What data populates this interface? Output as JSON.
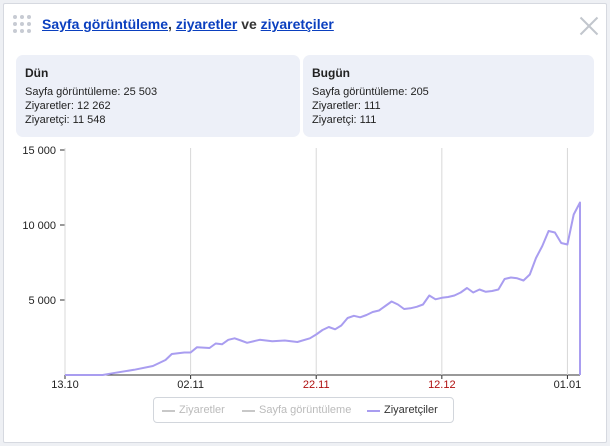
{
  "title": {
    "link1": "Sayfa görüntüleme",
    "sep1": ",",
    "link2": "ziyaretler",
    "and": "ve",
    "link3": "ziyaretçiler"
  },
  "stats": {
    "yesterday": {
      "heading": "Dün",
      "pageviews": "Sayfa görüntüleme: 25 503",
      "visits": "Ziyaretler: 12 262",
      "visitors": "Ziyaretçi: 11 548"
    },
    "today": {
      "heading": "Bugün",
      "pageviews": "Sayfa görüntüleme: 205",
      "visits": "Ziyaretler: 111",
      "visitors": "Ziyaretçi: 111"
    }
  },
  "legend": [
    {
      "label": "Ziyaretler",
      "color": "#c8c8c8",
      "active": false
    },
    {
      "label": "Sayfa görüntüleme",
      "color": "#c8c8c8",
      "active": false
    },
    {
      "label": "Ziyaretçiler",
      "color": "#a99df0",
      "active": true
    }
  ],
  "colors": {
    "line": "#a99df0",
    "axis": "#333333",
    "grid": "#d8d8d8",
    "weekend_tick": "#b01010"
  },
  "chart_data": {
    "type": "line",
    "title": "",
    "xlabel": "",
    "ylabel": "",
    "ylim": [
      0,
      15000
    ],
    "yticks": [
      {
        "value": 5000,
        "label": "5 000"
      },
      {
        "value": 10000,
        "label": "10 000"
      },
      {
        "value": 15000,
        "label": "15 000"
      }
    ],
    "xlim": [
      "2013-10-13",
      "2014-01-03"
    ],
    "xticks": [
      {
        "date": "2013-10-13",
        "label": "13.10",
        "weekend": false
      },
      {
        "date": "2013-11-02",
        "label": "02.11",
        "weekend": false
      },
      {
        "date": "2013-11-22",
        "label": "22.11",
        "weekend": true
      },
      {
        "date": "2013-12-12",
        "label": "12.12",
        "weekend": true
      },
      {
        "date": "2014-01-01",
        "label": "01.01",
        "weekend": false
      }
    ],
    "series": [
      {
        "name": "Ziyaretçiler",
        "points": [
          [
            "2013-10-13",
            0
          ],
          [
            "2013-10-19",
            0
          ],
          [
            "2013-10-21",
            150
          ],
          [
            "2013-10-24",
            350
          ],
          [
            "2013-10-27",
            600
          ],
          [
            "2013-10-29",
            1000
          ],
          [
            "2013-10-30",
            1400
          ],
          [
            "2013-11-01",
            1500
          ],
          [
            "2013-11-02",
            1500
          ],
          [
            "2013-11-03",
            1850
          ],
          [
            "2013-11-05",
            1800
          ],
          [
            "2013-11-06",
            2100
          ],
          [
            "2013-11-07",
            2050
          ],
          [
            "2013-11-08",
            2350
          ],
          [
            "2013-11-09",
            2450
          ],
          [
            "2013-11-10",
            2300
          ],
          [
            "2013-11-11",
            2150
          ],
          [
            "2013-11-13",
            2350
          ],
          [
            "2013-11-15",
            2250
          ],
          [
            "2013-11-17",
            2300
          ],
          [
            "2013-11-19",
            2200
          ],
          [
            "2013-11-21",
            2450
          ],
          [
            "2013-11-22",
            2700
          ],
          [
            "2013-11-23",
            3000
          ],
          [
            "2013-11-24",
            3200
          ],
          [
            "2013-11-25",
            3050
          ],
          [
            "2013-11-26",
            3300
          ],
          [
            "2013-11-27",
            3800
          ],
          [
            "2013-11-28",
            3950
          ],
          [
            "2013-11-29",
            3850
          ],
          [
            "2013-11-30",
            4000
          ],
          [
            "2013-12-01",
            4200
          ],
          [
            "2013-12-02",
            4300
          ],
          [
            "2013-12-03",
            4600
          ],
          [
            "2013-12-04",
            4900
          ],
          [
            "2013-12-05",
            4700
          ],
          [
            "2013-12-06",
            4400
          ],
          [
            "2013-12-07",
            4450
          ],
          [
            "2013-12-08",
            4550
          ],
          [
            "2013-12-09",
            4700
          ],
          [
            "2013-12-10",
            5300
          ],
          [
            "2013-12-11",
            5050
          ],
          [
            "2013-12-12",
            5150
          ],
          [
            "2013-12-13",
            5200
          ],
          [
            "2013-12-14",
            5300
          ],
          [
            "2013-12-15",
            5500
          ],
          [
            "2013-12-16",
            5800
          ],
          [
            "2013-12-17",
            5500
          ],
          [
            "2013-12-18",
            5700
          ],
          [
            "2013-12-19",
            5550
          ],
          [
            "2013-12-20",
            5600
          ],
          [
            "2013-12-21",
            5700
          ],
          [
            "2013-12-22",
            6400
          ],
          [
            "2013-12-23",
            6500
          ],
          [
            "2013-12-24",
            6450
          ],
          [
            "2013-12-25",
            6300
          ],
          [
            "2013-12-26",
            6700
          ],
          [
            "2013-12-27",
            7800
          ],
          [
            "2013-12-28",
            8600
          ],
          [
            "2013-12-29",
            9600
          ],
          [
            "2013-12-30",
            9500
          ],
          [
            "2013-12-31",
            8800
          ],
          [
            "2014-01-01",
            8700
          ],
          [
            "2014-01-02",
            10700
          ],
          [
            "2014-01-03",
            11500
          ],
          [
            "2014-01-03",
            0
          ]
        ]
      }
    ],
    "grid": {
      "y": false,
      "x_ticks_only": true
    },
    "legend_position": "bottom-center"
  }
}
